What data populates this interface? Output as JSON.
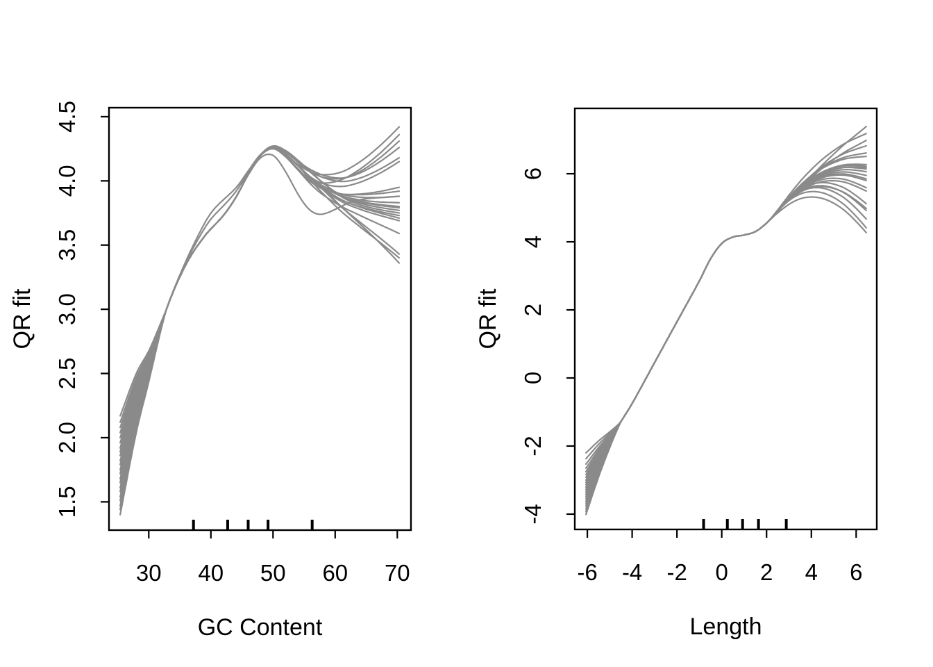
{
  "figure": {
    "background": "#ffffff",
    "foreground": "#000000",
    "panels": 2
  },
  "chart_data": [
    {
      "type": "line",
      "panel": "left",
      "title": "",
      "xlabel": "GC Content",
      "ylabel": "QR fit",
      "xlim": [
        23.6,
        72.2
      ],
      "ylim": [
        1.28,
        4.57
      ],
      "xticks": [
        30,
        40,
        50,
        60,
        70
      ],
      "xtick_labels": [
        "30",
        "40",
        "50",
        "60",
        "70"
      ],
      "yticks": [
        1.5,
        2.0,
        2.5,
        3.0,
        3.5,
        4.0,
        4.5
      ],
      "ytick_labels": [
        "1.5",
        "2.0",
        "2.5",
        "3.0",
        "3.5",
        "4.0",
        "4.5"
      ],
      "grid": false,
      "legend": null,
      "rug_x": [
        37.2,
        42.7,
        46.0,
        49.2,
        56.3
      ],
      "line_color": "#8a8a8a",
      "n_curves": 22,
      "x_range_of_curves": [
        25.4,
        70.3
      ],
      "base_curve": {
        "x": [
          25.4,
          28,
          30,
          33,
          36,
          39,
          42,
          44,
          46,
          48,
          50,
          52,
          54,
          56,
          58,
          61,
          64,
          67,
          70.3
        ],
        "y": [
          1.8,
          2.28,
          2.56,
          3.02,
          3.35,
          3.57,
          3.73,
          3.87,
          4.05,
          4.2,
          4.26,
          4.21,
          4.12,
          4.03,
          3.96,
          3.89,
          3.86,
          3.85,
          3.85
        ]
      },
      "converge": {
        "x": 32.8,
        "p": 1.2
      },
      "fan": {
        "x0": 53.0,
        "jitter": 3.5,
        "p": 1.5
      },
      "bumps": {
        "rise": [
          41,
          4
        ],
        "dip": [
          56,
          5
        ]
      },
      "curve_offset_fields": [
        "start_offset",
        "end_offset",
        "rise_bump",
        "dip_bump"
      ],
      "curves": [
        [
          -0.4,
          0.57,
          0,
          0
        ],
        [
          -0.36,
          -0.08,
          0,
          0.04
        ],
        [
          -0.33,
          0.1,
          0,
          -0.03
        ],
        [
          -0.29,
          -0.45,
          0,
          0
        ],
        [
          -0.26,
          0.03,
          0.13,
          0
        ],
        [
          -0.22,
          -0.12,
          0,
          0
        ],
        [
          -0.19,
          0.46,
          0,
          0.03
        ],
        [
          -0.15,
          -0.05,
          0,
          0
        ],
        [
          -0.12,
          -0.26,
          0,
          -0.04
        ],
        [
          -0.08,
          0.3,
          0,
          0
        ],
        [
          -0.05,
          -0.1,
          0,
          0.05
        ],
        [
          -0.01,
          0.03,
          0,
          -0.26
        ],
        [
          0.02,
          -0.49,
          0,
          0
        ],
        [
          0.06,
          0.41,
          0,
          0.04
        ],
        [
          0.09,
          -0.02,
          0.08,
          0
        ],
        [
          0.12,
          -0.16,
          0,
          0
        ],
        [
          0.16,
          0.51,
          0,
          -0.03
        ],
        [
          0.2,
          -0.06,
          0,
          0
        ],
        [
          0.24,
          0.33,
          0,
          0.03
        ],
        [
          0.28,
          -0.42,
          0,
          0
        ],
        [
          0.32,
          0.07,
          0,
          -0.04
        ],
        [
          0.37,
          -0.14,
          0,
          0
        ]
      ]
    },
    {
      "type": "line",
      "panel": "right",
      "title": "",
      "xlabel": "Length",
      "ylabel": "QR fit",
      "xlim": [
        -6.56,
        6.92
      ],
      "ylim": [
        -4.45,
        7.92
      ],
      "xticks": [
        -6,
        -4,
        -2,
        0,
        2,
        4,
        6
      ],
      "xtick_labels": [
        "-6",
        "-4",
        "-2",
        "0",
        "2",
        "4",
        "6"
      ],
      "yticks": [
        -4,
        -2,
        0,
        2,
        4,
        6
      ],
      "ytick_labels": [
        "-4",
        "-2",
        "0",
        "2",
        "4",
        "6"
      ],
      "grid": false,
      "legend": null,
      "rug_x": [
        -0.81,
        0.25,
        0.93,
        1.64,
        2.88
      ],
      "line_color": "#8a8a8a",
      "n_curves": 22,
      "x_range_of_curves": [
        -6.06,
        6.45
      ],
      "base_curve": {
        "x": [
          -6.06,
          -5.5,
          -5,
          -4.5,
          -4,
          -3,
          -2,
          -1,
          -0.5,
          0,
          0.5,
          1,
          1.5,
          2,
          2.5,
          3,
          3.5,
          4,
          4.5,
          5,
          5.5,
          6,
          6.45
        ],
        "y": [
          -3.05,
          -2.35,
          -1.8,
          -1.28,
          -0.75,
          0.45,
          1.65,
          2.85,
          3.5,
          3.95,
          4.14,
          4.2,
          4.3,
          4.55,
          4.9,
          5.25,
          5.55,
          5.77,
          5.92,
          6.0,
          6.02,
          5.97,
          5.9
        ]
      },
      "converge": {
        "x": -4.5,
        "p": 1.2
      },
      "fan": {
        "x0": 2.0,
        "jitter": 1.2,
        "p": 1.6
      },
      "bumps": null,
      "curve_offset_fields": [
        "start_offset",
        "end_offset"
      ],
      "curves": [
        [
          -0.96,
          0.32
        ],
        [
          -0.88,
          -0.92
        ],
        [
          -0.8,
          1.49
        ],
        [
          -0.72,
          0.05
        ],
        [
          -0.65,
          -1.23
        ],
        [
          -0.58,
          0.61
        ],
        [
          -0.51,
          -0.1
        ],
        [
          -0.44,
          1.08
        ],
        [
          -0.37,
          -0.41
        ],
        [
          -0.3,
          0.28
        ],
        [
          -0.23,
          -1.63
        ],
        [
          -0.16,
          0.92
        ],
        [
          -0.09,
          -0.05
        ],
        [
          -0.02,
          0.37
        ],
        [
          0.05,
          -0.98
        ],
        [
          0.13,
          1.28
        ],
        [
          0.21,
          0.16
        ],
        [
          0.3,
          -0.78
        ],
        [
          0.4,
          0.71
        ],
        [
          0.52,
          -0.31
        ],
        [
          0.68,
          0.24
        ],
        [
          0.85,
          -1.49
        ]
      ]
    }
  ]
}
